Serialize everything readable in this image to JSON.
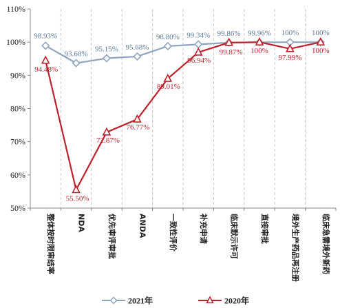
{
  "chart_data": {
    "type": "line",
    "categories": [
      "整体按时限审结率",
      "NDA",
      "优先审评审批",
      "ANDA",
      "一致性评价",
      "补充申请",
      "临床默示许可",
      "直接审批",
      "境外生产药品再注册",
      "临床急需境外新药"
    ],
    "y_ticks": [
      "50%",
      "60%",
      "70%",
      "80%",
      "90%",
      "100%",
      "110%"
    ],
    "ylim": [
      50,
      110
    ],
    "grid": "vertical-dashed",
    "legend_position": "bottom",
    "series": [
      {
        "name": "2021年",
        "color": "#8fa5bf",
        "marker": "diamond",
        "values": [
          98.93,
          93.68,
          95.15,
          95.68,
          98.8,
          99.34,
          99.86,
          99.96,
          100,
          100
        ],
        "labels": [
          "98.93%",
          "93.68%",
          "95.15%",
          "95.68%",
          "98.80%",
          "99.34%",
          "99.86%",
          "99.96%",
          "100%",
          "100%"
        ]
      },
      {
        "name": "2020年",
        "color": "#c0202a",
        "marker": "triangle",
        "values": [
          94.48,
          55.5,
          72.87,
          76.77,
          89.01,
          96.94,
          99.87,
          100,
          97.99,
          100
        ],
        "labels": [
          "94.48%",
          "55.50%",
          "72.87%",
          "76.77%",
          "89.01%",
          "96.94%",
          "99.87%",
          "100%",
          "97.99%",
          "100%"
        ]
      }
    ]
  }
}
